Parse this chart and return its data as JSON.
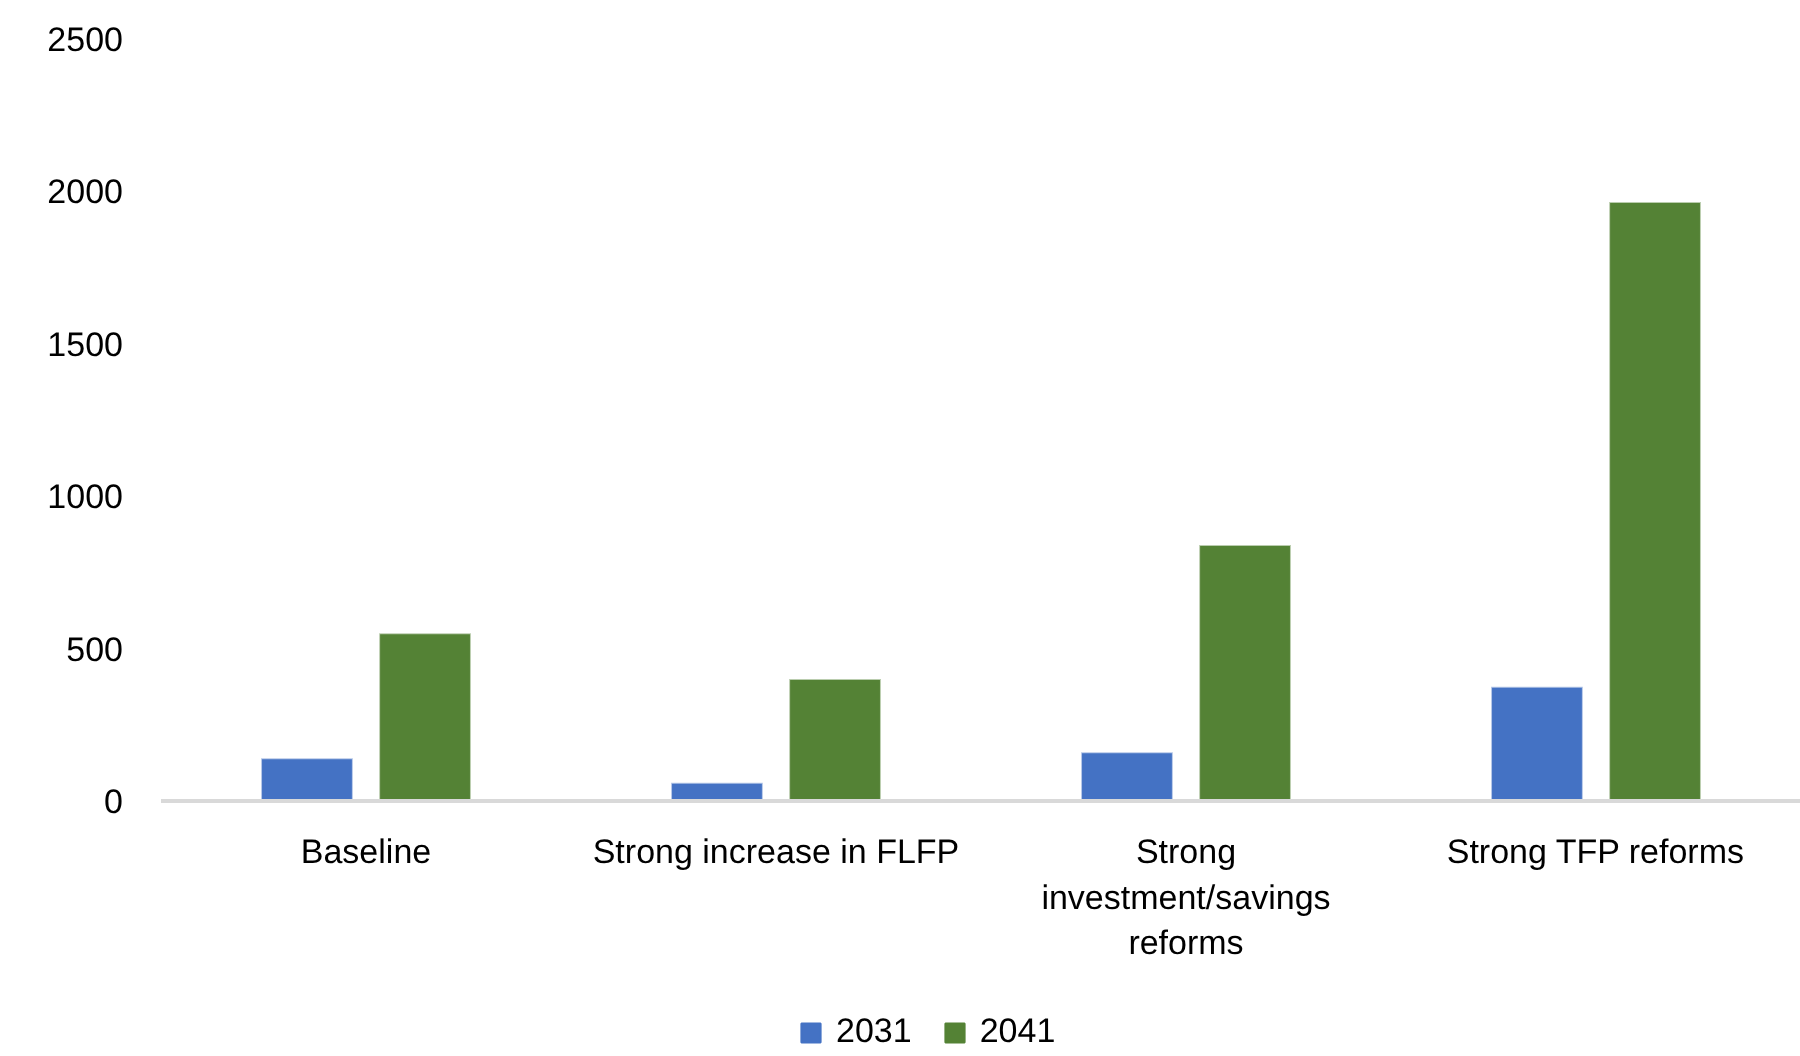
{
  "chart_data": {
    "type": "bar",
    "categories": [
      "Baseline",
      "Strong increase in FLFP",
      "Strong investment/savings reforms",
      "Strong TFP reforms"
    ],
    "series": [
      {
        "name": "2031",
        "color": "#4472c4",
        "values": [
          140,
          60,
          160,
          375
        ]
      },
      {
        "name": "2041",
        "color": "#548235",
        "values": [
          550,
          400,
          840,
          1965
        ]
      }
    ],
    "ylim": [
      0,
      2500
    ],
    "yticks": [
      0,
      500,
      1000,
      1500,
      2000,
      2500
    ],
    "legend": "bottom"
  }
}
